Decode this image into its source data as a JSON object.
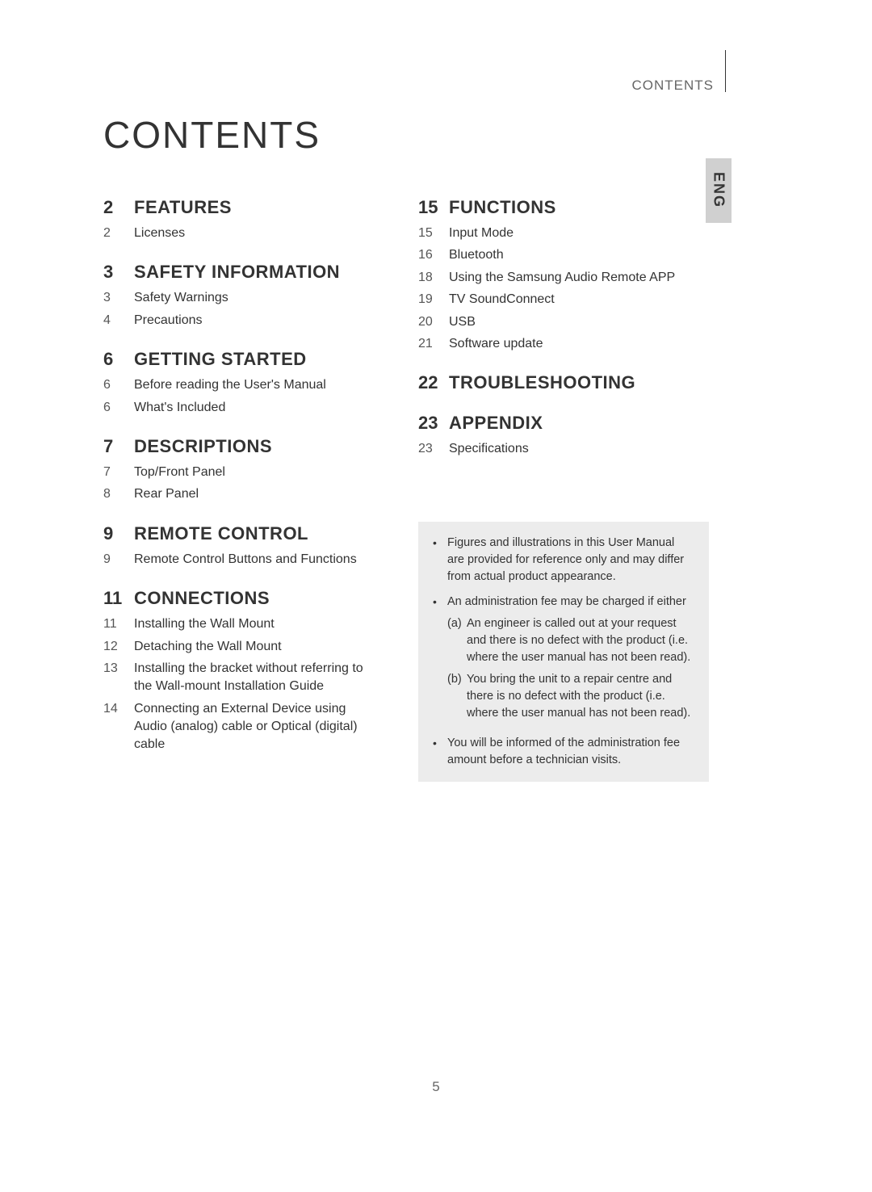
{
  "header": {
    "label": "CONTENTS",
    "lang_tab": "ENG"
  },
  "title": "CONTENTS",
  "page_number": "5",
  "left_sections": [
    {
      "page": "2",
      "title": "FEATURES",
      "items": [
        {
          "page": "2",
          "label": "Licenses"
        }
      ]
    },
    {
      "page": "3",
      "title": "SAFETY INFORMATION",
      "items": [
        {
          "page": "3",
          "label": "Safety Warnings"
        },
        {
          "page": "4",
          "label": "Precautions"
        }
      ]
    },
    {
      "page": "6",
      "title": "GETTING STARTED",
      "items": [
        {
          "page": "6",
          "label": "Before reading the User's Manual"
        },
        {
          "page": "6",
          "label": "What's Included"
        }
      ]
    },
    {
      "page": "7",
      "title": "DESCRIPTIONS",
      "items": [
        {
          "page": "7",
          "label": "Top/Front Panel"
        },
        {
          "page": "8",
          "label": "Rear Panel"
        }
      ]
    },
    {
      "page": "9",
      "title": "REMOTE CONTROL",
      "items": [
        {
          "page": "9",
          "label": "Remote Control Buttons and Functions"
        }
      ]
    },
    {
      "page": "11",
      "title": "CONNECTIONS",
      "items": [
        {
          "page": "11",
          "label": "Installing the Wall Mount"
        },
        {
          "page": "12",
          "label": "Detaching the Wall Mount"
        },
        {
          "page": "13",
          "label": "Installing the bracket without referring to the Wall-mount Installation Guide"
        },
        {
          "page": "14",
          "label": "Connecting an External Device using Audio (analog) cable or Optical (digital) cable"
        }
      ]
    }
  ],
  "right_sections": [
    {
      "page": "15",
      "title": "FUNCTIONS",
      "items": [
        {
          "page": "15",
          "label": "Input Mode"
        },
        {
          "page": "16",
          "label": "Bluetooth"
        },
        {
          "page": "18",
          "label": "Using the Samsung Audio Remote APP"
        },
        {
          "page": "19",
          "label": "TV SoundConnect"
        },
        {
          "page": "20",
          "label": "USB"
        },
        {
          "page": "21",
          "label": "Software update"
        }
      ]
    },
    {
      "page": "22",
      "title": "TROUBLESHOOTING",
      "items": []
    },
    {
      "page": "23",
      "title": "APPENDIX",
      "items": [
        {
          "page": "23",
          "label": "Specifications"
        }
      ]
    }
  ],
  "info_box": {
    "items": [
      {
        "text": "Figures and illustrations in this User Manual are provided for reference only and may differ from actual product appearance."
      },
      {
        "text": "An administration fee may be charged if either",
        "sub": [
          {
            "label": "(a)",
            "text": "An engineer is called out at your request and there is no defect with the product (i.e. where the user manual has not been read)."
          },
          {
            "label": "(b)",
            "text": "You bring the unit to a repair centre and there is no defect with the product (i.e. where the user manual has not been read)."
          }
        ]
      },
      {
        "text": "You will be informed of the administration fee amount before a technician visits."
      }
    ]
  }
}
